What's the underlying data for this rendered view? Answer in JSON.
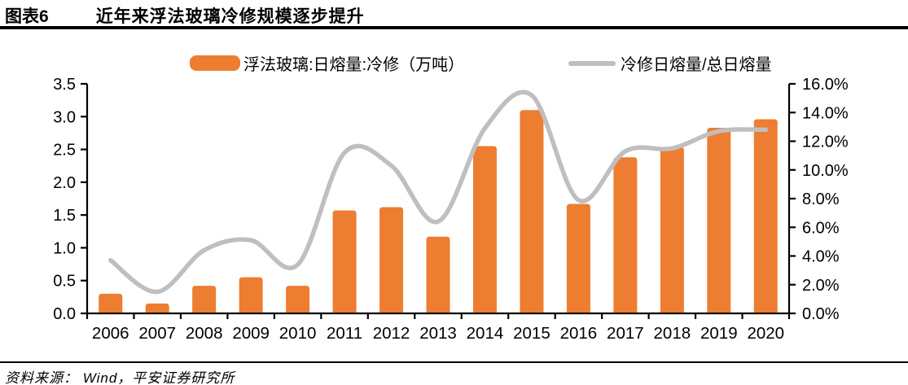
{
  "header": {
    "figure_label": "图表6",
    "title": "近年来浮法玻璃冷修规模逐步提升"
  },
  "legend": {
    "bar_label": "浮法玻璃:日熔量:冷修（万吨）",
    "line_label": "冷修日熔量/总日熔量"
  },
  "source": {
    "text": "资料来源： Wind，平安证券研究所"
  },
  "colors": {
    "bar": "#ED7D31",
    "line": "#BFBFBF",
    "axis": "#000000",
    "text": "#000000"
  },
  "chart_data": {
    "type": "bar",
    "title": "近年来浮法玻璃冷修规模逐步提升",
    "categories": [
      "2006",
      "2007",
      "2008",
      "2009",
      "2010",
      "2011",
      "2012",
      "2013",
      "2014",
      "2015",
      "2016",
      "2017",
      "2018",
      "2019",
      "2020"
    ],
    "series": [
      {
        "name": "浮法玻璃:日熔量:冷修（万吨）",
        "type": "bar",
        "axis": "left",
        "values": [
          0.3,
          0.15,
          0.42,
          0.55,
          0.42,
          1.57,
          1.62,
          1.17,
          2.55,
          3.1,
          1.67,
          2.38,
          2.54,
          2.83,
          2.96
        ]
      },
      {
        "name": "冷修日熔量/总日熔量",
        "type": "line",
        "axis": "right",
        "values": [
          3.7,
          1.5,
          4.4,
          5.1,
          3.4,
          11.2,
          10.3,
          6.4,
          12.9,
          15.2,
          7.9,
          11.3,
          11.5,
          12.7,
          12.8
        ]
      }
    ],
    "left_axis": {
      "min": 0,
      "max": 3.5,
      "step": 0.5,
      "tick_labels": [
        "0.0",
        "0.5",
        "1.0",
        "1.5",
        "2.0",
        "2.5",
        "3.0",
        "3.5"
      ]
    },
    "right_axis": {
      "min": 0,
      "max": 16,
      "step": 2,
      "unit": "%",
      "tick_labels": [
        "0.0%",
        "2.0%",
        "4.0%",
        "6.0%",
        "8.0%",
        "10.0%",
        "12.0%",
        "14.0%",
        "16.0%"
      ]
    },
    "grid": false,
    "legend_position": "top",
    "xlabel": "",
    "ylabel_left": "万吨",
    "ylabel_right": "%"
  }
}
